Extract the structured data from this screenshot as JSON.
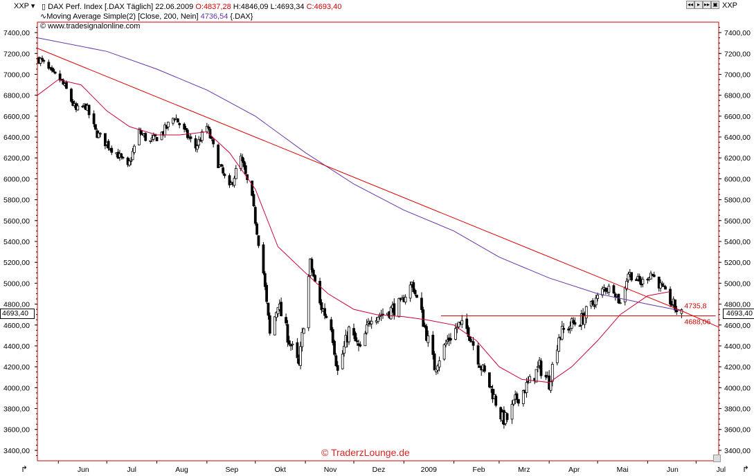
{
  "toolbar": {
    "symbol_left": "XXP",
    "symbol_right": "XXP"
  },
  "legend": {
    "line1_title": "DAX Perf. Index [.DAX  Täglich] 22.06.2009",
    "open": "O:4837,28",
    "high": "H:4846,09",
    "low": "L:4693,34",
    "close": "C:4693,40",
    "line2_label": "Moving Average Simple(2) [Close, 200, Nein]",
    "line2_value": "4736,54",
    "line2_suffix": "{.DAX}",
    "line3": "© www.tradesignalonline.com"
  },
  "nav": [
    "◂◂",
    "▸",
    "▸▸",
    "▣"
  ],
  "watermark": "© TraderzLounge.de",
  "last_price_label": "4693,40",
  "colors": {
    "up": "#ffffff",
    "down": "#000000",
    "ma200": "#6633aa",
    "ma50": "#cc0033",
    "trend": "#dd0000",
    "accent": "#cc0000"
  },
  "chart_data": {
    "type": "candlestick",
    "title": "DAX Perf. Index [.DAX Täglich] 22.06.2009",
    "ylim": [
      3300,
      7500
    ],
    "yticks": [
      3400,
      3600,
      3800,
      4000,
      4200,
      4400,
      4600,
      4800,
      5000,
      5200,
      5400,
      5600,
      5800,
      6000,
      6200,
      6400,
      6600,
      6800,
      7000,
      7200,
      7400
    ],
    "ytick_labels": [
      "3400,00",
      "3600,00",
      "3800,00",
      "4000,00",
      "4200,00",
      "4400,00",
      "4600,00",
      "4800,00",
      "5000,00",
      "5200,00",
      "5400,00",
      "5600,00",
      "5800,00",
      "6000,00",
      "6200,00",
      "6400,00",
      "6600,00",
      "6800,00",
      "7000,00",
      "7200,00",
      "7400,00"
    ],
    "x_start": "2008-05-19",
    "x_end": "2009-07-15",
    "months": [
      {
        "label": "Jun",
        "date": "2008-06-01"
      },
      {
        "label": "Jul",
        "date": "2008-07-01"
      },
      {
        "label": "Aug",
        "date": "2008-08-01"
      },
      {
        "label": "Sep",
        "date": "2008-09-01"
      },
      {
        "label": "Okt",
        "date": "2008-10-01"
      },
      {
        "label": "Nov",
        "date": "2008-11-01"
      },
      {
        "label": "Dez",
        "date": "2008-12-01"
      },
      {
        "label": "2009",
        "date": "2009-01-01"
      },
      {
        "label": "Feb",
        "date": "2009-02-01"
      },
      {
        "label": "Mrz",
        "date": "2009-03-01"
      },
      {
        "label": "Apr",
        "date": "2009-04-01"
      },
      {
        "label": "Mai",
        "date": "2009-05-01"
      },
      {
        "label": "Jun",
        "date": "2009-06-01"
      },
      {
        "label": "Jul",
        "date": "2009-07-01"
      }
    ],
    "close_path": [
      [
        "2008-05-20",
        7150
      ],
      [
        "2008-05-23",
        7100
      ],
      [
        "2008-05-28",
        7000
      ],
      [
        "2008-06-02",
        6950
      ],
      [
        "2008-06-06",
        6850
      ],
      [
        "2008-06-12",
        6650
      ],
      [
        "2008-06-18",
        6700
      ],
      [
        "2008-06-24",
        6450
      ],
      [
        "2008-06-30",
        6350
      ],
      [
        "2008-07-07",
        6250
      ],
      [
        "2008-07-14",
        6100
      ],
      [
        "2008-07-21",
        6450
      ],
      [
        "2008-07-28",
        6350
      ],
      [
        "2008-08-05",
        6450
      ],
      [
        "2008-08-12",
        6600
      ],
      [
        "2008-08-18",
        6450
      ],
      [
        "2008-08-25",
        6300
      ],
      [
        "2008-09-01",
        6500
      ],
      [
        "2008-09-08",
        6150
      ],
      [
        "2008-09-15",
        5900
      ],
      [
        "2008-09-22",
        6200
      ],
      [
        "2008-09-29",
        5800
      ],
      [
        "2008-10-06",
        5100
      ],
      [
        "2008-10-10",
        4500
      ],
      [
        "2008-10-15",
        4800
      ],
      [
        "2008-10-22",
        4450
      ],
      [
        "2008-10-28",
        4200
      ],
      [
        "2008-11-04",
        5200
      ],
      [
        "2008-11-10",
        4800
      ],
      [
        "2008-11-17",
        4600
      ],
      [
        "2008-11-21",
        4150
      ],
      [
        "2008-11-28",
        4550
      ],
      [
        "2008-12-05",
        4350
      ],
      [
        "2008-12-12",
        4700
      ],
      [
        "2008-12-19",
        4700
      ],
      [
        "2008-12-30",
        4800
      ],
      [
        "2009-01-06",
        5000
      ],
      [
        "2009-01-12",
        4700
      ],
      [
        "2009-01-20",
        4200
      ],
      [
        "2009-01-28",
        4450
      ],
      [
        "2009-02-04",
        4600
      ],
      [
        "2009-02-10",
        4550
      ],
      [
        "2009-02-18",
        4200
      ],
      [
        "2009-02-25",
        3950
      ],
      [
        "2009-03-03",
        3700
      ],
      [
        "2009-03-06",
        3700
      ],
      [
        "2009-03-12",
        3900
      ],
      [
        "2009-03-20",
        4050
      ],
      [
        "2009-03-26",
        4200
      ],
      [
        "2009-04-01",
        4050
      ],
      [
        "2009-04-07",
        4500
      ],
      [
        "2009-04-14",
        4600
      ],
      [
        "2009-04-21",
        4650
      ],
      [
        "2009-04-28",
        4800
      ],
      [
        "2009-05-05",
        4950
      ],
      [
        "2009-05-11",
        4950
      ],
      [
        "2009-05-15",
        4800
      ],
      [
        "2009-05-20",
        5100
      ],
      [
        "2009-05-28",
        5000
      ],
      [
        "2009-06-03",
        5100
      ],
      [
        "2009-06-10",
        4950
      ],
      [
        "2009-06-16",
        4800
      ],
      [
        "2009-06-22",
        4693
      ]
    ],
    "ma200": [
      [
        "2008-05-19",
        7350
      ],
      [
        "2008-07-01",
        7220
      ],
      [
        "2008-08-01",
        7050
      ],
      [
        "2008-09-01",
        6850
      ],
      [
        "2008-10-01",
        6600
      ],
      [
        "2008-11-01",
        6250
      ],
      [
        "2008-12-01",
        5950
      ],
      [
        "2009-01-01",
        5700
      ],
      [
        "2009-02-01",
        5500
      ],
      [
        "2009-03-01",
        5250
      ],
      [
        "2009-04-01",
        5050
      ],
      [
        "2009-05-01",
        4900
      ],
      [
        "2009-06-01",
        4800
      ],
      [
        "2009-06-22",
        4736.54
      ]
    ],
    "ma50": [
      [
        "2008-05-19",
        6800
      ],
      [
        "2008-06-01",
        6950
      ],
      [
        "2008-06-15",
        6900
      ],
      [
        "2008-07-01",
        6650
      ],
      [
        "2008-07-15",
        6500
      ],
      [
        "2008-08-01",
        6420
      ],
      [
        "2008-08-15",
        6420
      ],
      [
        "2008-09-01",
        6450
      ],
      [
        "2008-09-15",
        6250
      ],
      [
        "2008-10-01",
        5900
      ],
      [
        "2008-10-15",
        5350
      ],
      [
        "2008-11-01",
        5100
      ],
      [
        "2008-11-15",
        4900
      ],
      [
        "2008-12-01",
        4750
      ],
      [
        "2008-12-15",
        4700
      ],
      [
        "2009-01-01",
        4680
      ],
      [
        "2009-01-15",
        4650
      ],
      [
        "2009-02-01",
        4600
      ],
      [
        "2009-02-15",
        4450
      ],
      [
        "2009-03-01",
        4200
      ],
      [
        "2009-03-15",
        4080
      ],
      [
        "2009-04-01",
        4050
      ],
      [
        "2009-04-15",
        4200
      ],
      [
        "2009-05-01",
        4450
      ],
      [
        "2009-05-15",
        4700
      ],
      [
        "2009-06-01",
        4880
      ],
      [
        "2009-06-15",
        4920
      ]
    ],
    "trendlines": [
      {
        "from": [
          "2008-05-19",
          7250
        ],
        "to": [
          "2009-06-22",
          4735.8
        ],
        "extend_to": [
          "2009-07-15",
          4580
        ]
      },
      {
        "from": [
          "2009-01-24",
          4688.06
        ],
        "to": [
          "2009-06-26",
          4688.06
        ]
      }
    ],
    "annotations": [
      {
        "text": "4735,8",
        "date": "2009-06-22",
        "value": 4735.8
      },
      {
        "text": "4688,06",
        "date": "2009-06-22",
        "value": 4688.06
      }
    ]
  }
}
